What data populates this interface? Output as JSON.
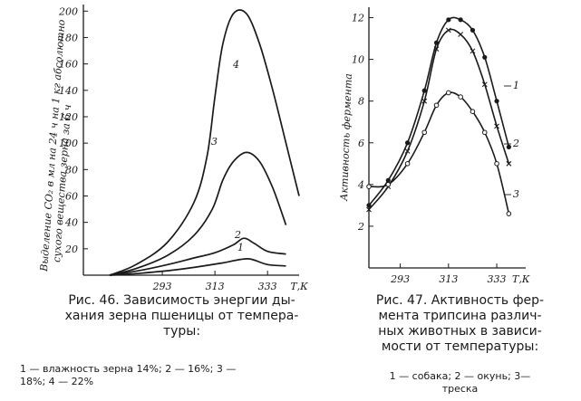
{
  "chart_data": [
    {
      "type": "line",
      "ylabel_lines": [
        "Выделение CO₂ в мл на 24 ч на 1 кг абсолютно",
        "сухого вещества зерна за 6 ч"
      ],
      "x_ticks": [
        "293",
        "313",
        "333",
        "Т,К"
      ],
      "y_ticks": [
        "20",
        "40",
        "60",
        "80",
        "100",
        "120",
        "140",
        "160",
        "180",
        "200"
      ],
      "xlim": [
        263,
        345
      ],
      "ylim": [
        0,
        205
      ],
      "series": [
        {
          "name": "1",
          "x": [
            273,
            285,
            300,
            315,
            323,
            327,
            333,
            340
          ],
          "y": [
            0,
            1.5,
            4.5,
            9,
            12,
            12,
            8,
            7
          ]
        },
        {
          "name": "2",
          "x": [
            273,
            283,
            295,
            305,
            313,
            320,
            324,
            328,
            333,
            340
          ],
          "y": [
            0,
            3,
            8,
            13,
            17,
            23,
            28,
            24,
            18,
            16
          ]
        },
        {
          "name": "3",
          "x": [
            273,
            283,
            295,
            305,
            312,
            316,
            320,
            325,
            330,
            335,
            340
          ],
          "y": [
            0,
            5,
            15,
            30,
            50,
            72,
            86,
            93,
            86,
            66,
            38
          ]
        },
        {
          "name": "4",
          "x": [
            273,
            283,
            295,
            305,
            310,
            313,
            316,
            320,
            325,
            330,
            335,
            340,
            345
          ],
          "y": [
            0,
            8,
            25,
            55,
            90,
            135,
            175,
            198,
            198,
            175,
            140,
            100,
            60
          ]
        }
      ]
    },
    {
      "type": "line",
      "ylabel": "Активность фермента",
      "x_ticks": [
        "293",
        "313",
        "333",
        "Т,К"
      ],
      "y_ticks": [
        "2",
        "4",
        "6",
        "8",
        "10",
        "12"
      ],
      "xlim": [
        280,
        345
      ],
      "ylim": [
        0,
        12.5
      ],
      "series": [
        {
          "name": "1",
          "x": [
            280,
            288,
            296,
            303,
            308,
            313,
            318,
            323,
            328,
            333,
            338
          ],
          "y": [
            3.0,
            4.2,
            6.0,
            8.5,
            10.8,
            11.9,
            11.9,
            11.4,
            10.1,
            8.0,
            5.8
          ]
        },
        {
          "name": "2",
          "x": [
            280,
            288,
            296,
            303,
            308,
            313,
            318,
            323,
            328,
            333,
            338
          ],
          "y": [
            2.8,
            3.9,
            5.6,
            8.0,
            10.5,
            11.4,
            11.2,
            10.4,
            8.8,
            6.8,
            5.0
          ]
        },
        {
          "name": "3",
          "x": [
            280,
            288,
            296,
            303,
            308,
            313,
            318,
            323,
            328,
            333,
            338
          ],
          "y": [
            3.9,
            4.0,
            5.0,
            6.5,
            7.8,
            8.4,
            8.2,
            7.5,
            6.5,
            5.0,
            2.6
          ]
        }
      ]
    }
  ],
  "captions": {
    "left": "Рис. 46. Зависимость энергии ды-\nхания зерна пшеницы  от темпера-\nтуры:",
    "left_legend": "1 — влажность зерна 14%; 2 — 16%; 3 —\n18%; 4 — 22%",
    "right": "Рис. 47. Активность фер-\nмента трипсина различ-\nных животных в зависи-\nмости от температуры:",
    "right_legend": "1 — собака;     2 — окунь;  3—\nтреска"
  }
}
